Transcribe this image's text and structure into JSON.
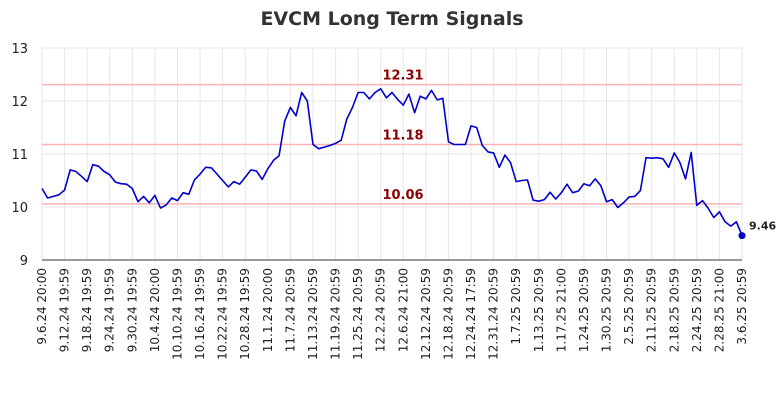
{
  "chart_data": {
    "type": "line",
    "title": "EVCM Long Term Signals",
    "xlabel": "",
    "ylabel": "",
    "ylim": [
      9,
      13
    ],
    "yticks": [
      9,
      10,
      11,
      12,
      13
    ],
    "grid": true,
    "line_color": "#0000cc",
    "hline_color": "#ffb3b3",
    "hline_label_color": "#8b0000",
    "xtick_labels": [
      "9.6.24 20:00",
      "9.12.24 19:59",
      "9.18.24 19:59",
      "9.24.24 19:59",
      "9.30.24 19:59",
      "10.4.24 20:00",
      "10.10.24 19:59",
      "10.16.24 19:59",
      "10.22.24 19:59",
      "10.28.24 19:59",
      "11.1.24 20:00",
      "11.7.24 20:59",
      "11.13.24 20:59",
      "11.19.24 20:59",
      "11.25.24 20:59",
      "12.2.24 20:59",
      "12.6.24 21:00",
      "12.12.24 20:59",
      "12.18.24 20:59",
      "12.24.24 17:59",
      "12.31.24 20:59",
      "1.7.25 20:59",
      "1.13.25 20:59",
      "1.17.25 21:00",
      "1.24.25 20:59",
      "1.30.25 20:59",
      "2.5.25 20:59",
      "2.11.25 20:59",
      "2.18.25 20:59",
      "2.24.25 20:59",
      "2.28.25 21:00",
      "3.6.25 20:59"
    ],
    "hlines": [
      {
        "value": 12.31,
        "label": "12.31"
      },
      {
        "value": 11.18,
        "label": "11.18"
      },
      {
        "value": 10.06,
        "label": "10.06"
      }
    ],
    "last_value_label": "9.46",
    "series": [
      {
        "values": [
          10.35,
          10.17,
          10.2,
          10.23,
          10.32,
          10.7,
          10.67,
          10.58,
          10.48,
          10.8,
          10.77,
          10.67,
          10.61,
          10.47,
          10.44,
          10.43,
          10.35,
          10.1,
          10.2,
          10.08,
          10.22,
          9.98,
          10.04,
          10.17,
          10.12,
          10.27,
          10.24,
          10.51,
          10.62,
          10.75,
          10.74,
          10.62,
          10.5,
          10.38,
          10.48,
          10.43,
          10.56,
          10.7,
          10.68,
          10.52,
          10.72,
          10.88,
          10.97,
          11.62,
          11.88,
          11.72,
          12.16,
          12.0,
          11.18,
          11.1,
          11.13,
          11.16,
          11.2,
          11.26,
          11.66,
          11.88,
          12.16,
          12.16,
          12.04,
          12.16,
          12.23,
          12.06,
          12.16,
          12.03,
          11.92,
          12.13,
          11.78,
          12.09,
          12.04,
          12.2,
          12.02,
          12.05,
          11.23,
          11.18,
          11.18,
          11.18,
          11.53,
          11.5,
          11.16,
          11.04,
          11.02,
          10.75,
          10.98,
          10.84,
          10.48,
          10.5,
          10.51,
          10.13,
          10.11,
          10.14,
          10.28,
          10.15,
          10.27,
          10.43,
          10.27,
          10.3,
          10.44,
          10.4,
          10.53,
          10.4,
          10.1,
          10.14,
          9.99,
          10.08,
          10.19,
          10.2,
          10.31,
          10.93,
          10.92,
          10.93,
          10.91,
          10.75,
          11.02,
          10.84,
          10.53,
          11.03,
          10.03,
          10.12,
          9.98,
          9.8,
          9.91,
          9.72,
          9.64,
          9.72,
          9.46
        ]
      }
    ]
  }
}
